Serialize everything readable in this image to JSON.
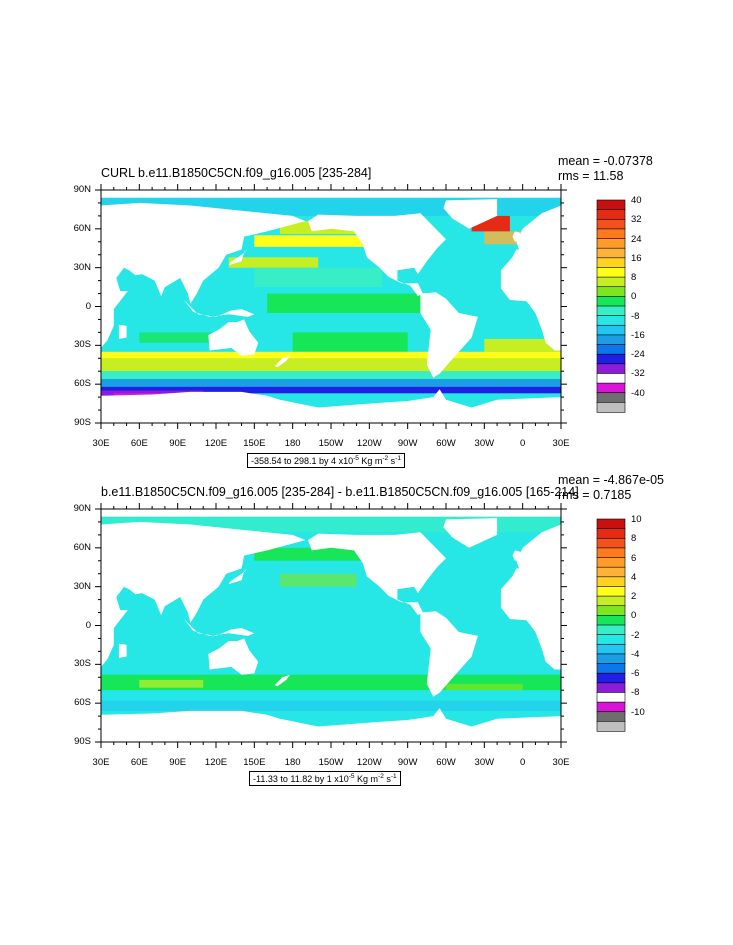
{
  "panels": [
    {
      "title": "CURL b.e11.B1850C5CN.f09_g16.005 [235-284]",
      "stats": {
        "mean": "mean = -0.07378",
        "rms": "rms = 11.58"
      },
      "contour_info": {
        "prefix": "-358.54 to 298.1 by 4 x10",
        "exp": "-5",
        "unit": " Kg m",
        "unit_exp": "-2",
        "unit2": " s",
        "unit2_exp": "-1"
      },
      "colorbar_labels": [
        "40",
        "32",
        "24",
        "16",
        "8",
        "0",
        "-8",
        "-16",
        "-24",
        "-32",
        "-40"
      ]
    },
    {
      "title": "b.e11.B1850C5CN.f09_g16.005 [235-284] - b.e11.B1850C5CN.f09_g16.005 [165-214]",
      "stats": {
        "mean": "mean = -4.867e-05",
        "rms": "rms = 0.7185"
      },
      "contour_info": {
        "prefix": "-11.33 to 11.82 by 1 x10",
        "exp": "-5",
        "unit": " Kg m",
        "unit_exp": "-2",
        "unit2": " s",
        "unit2_exp": "-1"
      },
      "colorbar_labels": [
        "10",
        "8",
        "6",
        "4",
        "2",
        "0",
        "-2",
        "-4",
        "-6",
        "-8",
        "-10"
      ]
    }
  ],
  "axes": {
    "lon_labels": [
      "30E",
      "60E",
      "90E",
      "120E",
      "150E",
      "180",
      "150W",
      "120W",
      "90W",
      "60W",
      "30W",
      "0",
      "30E"
    ],
    "lat_labels": [
      "90N",
      "60N",
      "30N",
      "0",
      "30S",
      "60S",
      "90S"
    ]
  },
  "colorbar_colors": [
    "#bfbfbf",
    "#6e6e6e",
    "#d914d9",
    "#ffffff",
    "#8c1cd9",
    "#1f1fe6",
    "#0c77ec",
    "#1c9ee6",
    "#22c6f0",
    "#26e6e6",
    "#38eec6",
    "#18e659",
    "#7ee61f",
    "#c6ee22",
    "#ffff1a",
    "#ffd21f",
    "#ffb23a",
    "#ff9a2b",
    "#ff7a1f",
    "#f2521c",
    "#e62b14",
    "#c81010"
  ],
  "colors": {
    "ocean_base": "#27e6e6",
    "ocean_base2": "#3deec2",
    "land": "#ffffff"
  }
}
